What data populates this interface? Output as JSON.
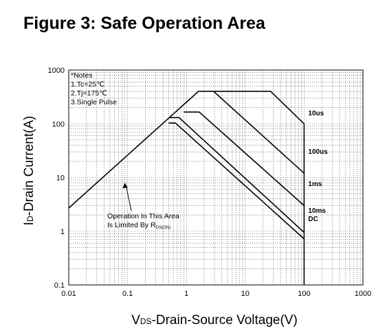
{
  "figure_title": "Figure 3: Safe Operation Area",
  "chart_data": {
    "type": "line",
    "xscale": "log",
    "yscale": "log",
    "xlim": [
      0.01,
      1000
    ],
    "ylim": [
      0.1,
      1000
    ],
    "xlabel_main": "-Drain-Source Voltage(V)",
    "xlabel_prefix": "V",
    "xlabel_sub": "DS",
    "ylabel_main": "-Drain Current(A)",
    "ylabel_prefix": "I",
    "ylabel_sub": "D",
    "x_ticks": [
      0.01,
      0.1,
      1,
      10,
      100,
      1000
    ],
    "x_tick_labels": [
      "0.01",
      "0.1",
      "1",
      "10",
      "100",
      "1000"
    ],
    "y_ticks": [
      0.1,
      1,
      10,
      100,
      1000
    ],
    "y_tick_labels": [
      "0.1",
      "1",
      "10",
      "100",
      "1000"
    ],
    "grid": true,
    "notes": [
      "*Notes",
      "1.Tc=25℃",
      "2.Tj=175℃",
      "3.Single Pulse"
    ],
    "annotation": {
      "lines": [
        "Operation In This Area",
        "Is Limited By R"
      ],
      "subscript": "DS(ON)",
      "arrow_to": [
        0.09,
        8
      ]
    },
    "rdson_limit": {
      "x": [
        0.01,
        1.6
      ],
      "y": [
        2.7,
        400
      ]
    },
    "series": [
      {
        "label": "10us",
        "x": [
          1.6,
          27,
          100,
          100
        ],
        "y": [
          400,
          400,
          100,
          0.1
        ]
      },
      {
        "label": "100us",
        "x": [
          2.9,
          100
        ],
        "y": [
          400,
          12
        ]
      },
      {
        "label": "1ms",
        "x": [
          0.9,
          1.65,
          100
        ],
        "y": [
          165,
          165,
          3
        ]
      },
      {
        "label": "10ms",
        "x": [
          0.5,
          0.75,
          100
        ],
        "y": [
          130,
          130,
          0.95
        ]
      },
      {
        "label": "DC",
        "x": [
          0.5,
          0.65,
          100
        ],
        "y": [
          103,
          103,
          0.72
        ]
      }
    ]
  }
}
